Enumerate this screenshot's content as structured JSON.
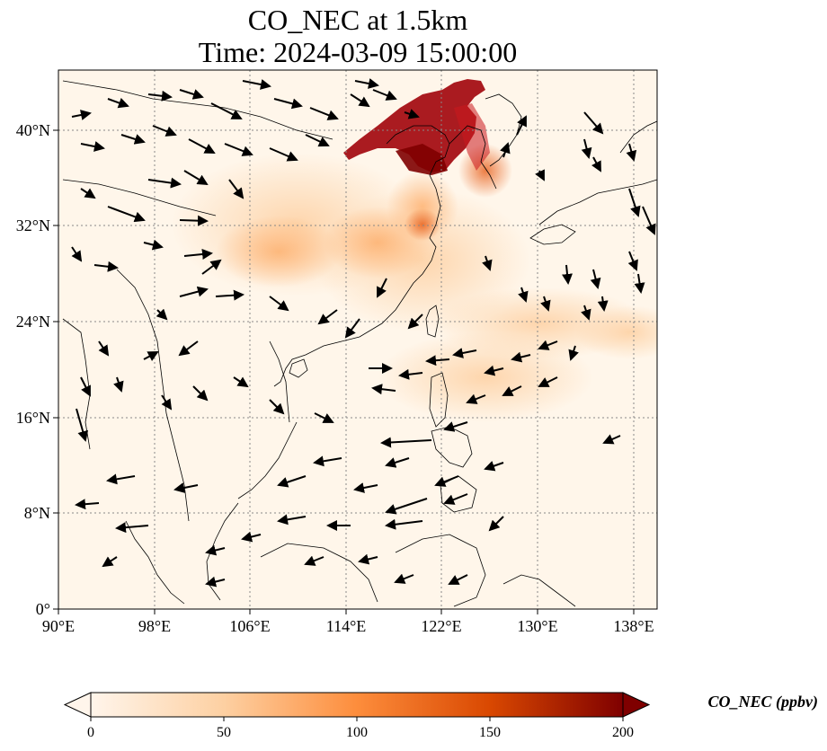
{
  "title": {
    "line1": "CO_NEC at 1.5km",
    "line2": "Time: 2024-03-09 15:00:00"
  },
  "map": {
    "lon_range": [
      90,
      141
    ],
    "lat_range": [
      0,
      45
    ],
    "lon_ticks": [
      "90°E",
      "98°E",
      "106°E",
      "114°E",
      "122°E",
      "130°E",
      "138°E"
    ],
    "lon_tick_values": [
      90,
      98,
      106,
      114,
      122,
      130,
      138
    ],
    "lat_ticks": [
      "0°",
      "8°N",
      "16°N",
      "24°N",
      "32°N",
      "40°N"
    ],
    "lat_tick_values": [
      0,
      8,
      16,
      24,
      32,
      40
    ],
    "gridlines": true,
    "background_color": "#fff6ea",
    "coastline_color": "#000000",
    "arrow_color": "#000000"
  },
  "colorbar": {
    "label": "CO_NEC (ppbv)",
    "min": 0,
    "max": 200,
    "ticks": [
      "0",
      "50",
      "100",
      "150",
      "200"
    ],
    "tick_values": [
      0,
      50,
      100,
      150,
      200
    ],
    "colormap": [
      "#fff5eb",
      "#fdd0a2",
      "#fd8d3c",
      "#d94801",
      "#7f0000"
    ],
    "extend": "both"
  }
}
